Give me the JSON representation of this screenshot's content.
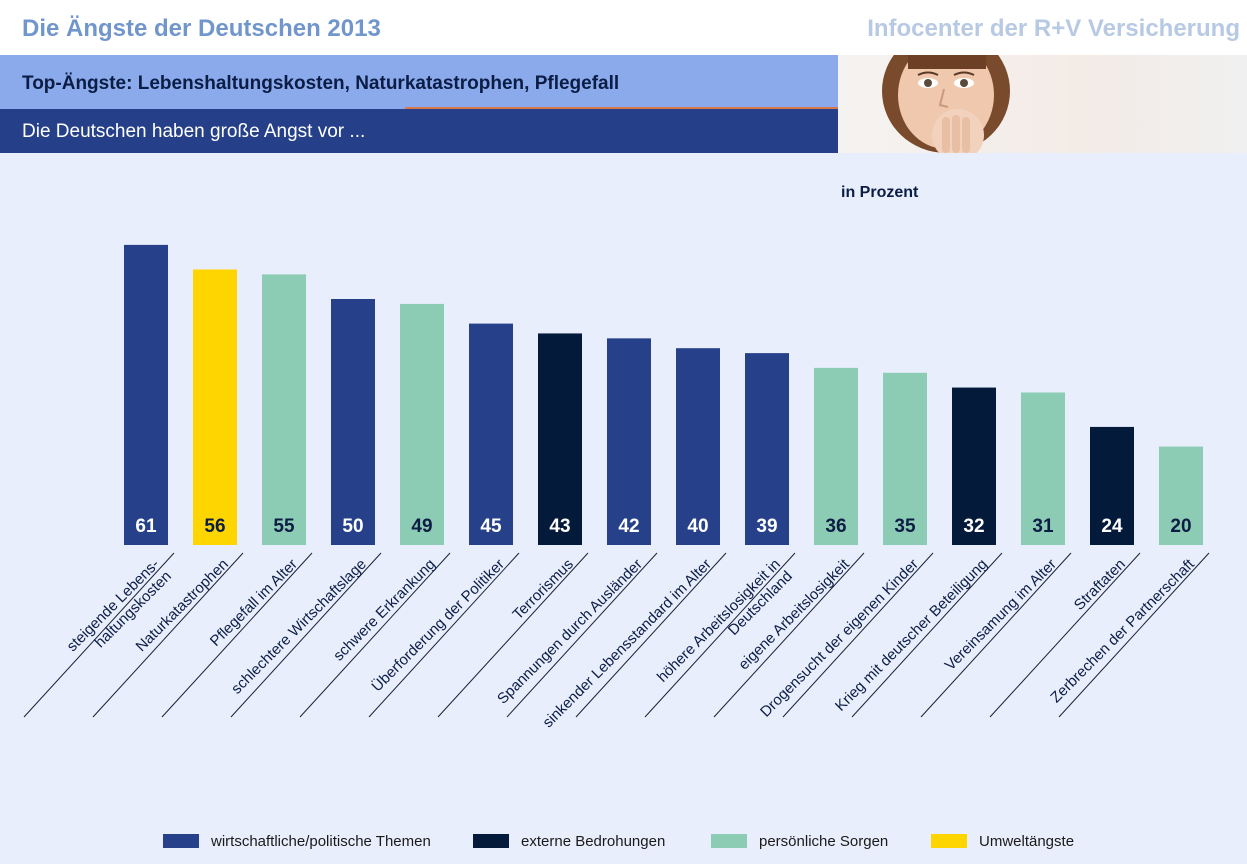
{
  "header": {
    "title": "Die Ängste der Deutschen 2013",
    "publisher": "Infocenter der R+V Versicherung",
    "subtitle": "Top-Ängste: Lebenshaltungskosten, Naturkatastrophen, Pflegefall",
    "lead": "Die Deutschen haben große Angst vor ..."
  },
  "unit_label": "in Prozent",
  "colors": {
    "wirtschaftlich": "#26418a",
    "extern": "#041a3a",
    "persoenlich": "#8ccbb4",
    "umwelt": "#ffd500"
  },
  "chart_data": {
    "type": "bar",
    "ylabel": "in Prozent",
    "ylim": [
      0,
      65
    ],
    "grid": false,
    "legend_position": "bottom",
    "categories": [
      [
        "steigende Lebens-",
        "haltungskosten"
      ],
      [
        "Naturkatastrophen"
      ],
      [
        "Pflegefall im Alter"
      ],
      [
        "schlechtere Wirtschaftslage"
      ],
      [
        "schwere Erkrankung"
      ],
      [
        "Überforderung der Politiker"
      ],
      [
        "Terrorismus"
      ],
      [
        "Spannungen durch Ausländer"
      ],
      [
        "sinkender Lebensstandard im Alter"
      ],
      [
        "höhere Arbeitslosigkeit in",
        "Deutschland"
      ],
      [
        "eigene Arbeitslosigkeit"
      ],
      [
        "Drogensucht der eigenen Kinder"
      ],
      [
        "Krieg mit deutscher Beteiligung"
      ],
      [
        "Vereinsamung im Alter"
      ],
      [
        "Straftaten"
      ],
      [
        "Zerbrechen der Partnerschaft"
      ]
    ],
    "values": [
      61,
      56,
      55,
      50,
      49,
      45,
      43,
      42,
      40,
      39,
      36,
      35,
      32,
      31,
      24,
      20
    ],
    "groups": [
      "wirtschaftlich",
      "umwelt",
      "persoenlich",
      "wirtschaftlich",
      "persoenlich",
      "wirtschaftlich",
      "extern",
      "wirtschaftlich",
      "wirtschaftlich",
      "wirtschaftlich",
      "persoenlich",
      "persoenlich",
      "extern",
      "persoenlich",
      "extern",
      "persoenlich"
    ],
    "legend": [
      {
        "key": "wirtschaftlich",
        "label": "wirtschaftliche/politische Themen"
      },
      {
        "key": "extern",
        "label": "externe Bedrohungen"
      },
      {
        "key": "persoenlich",
        "label": "persönliche Sorgen"
      },
      {
        "key": "umwelt",
        "label": "Umweltängste"
      }
    ]
  }
}
